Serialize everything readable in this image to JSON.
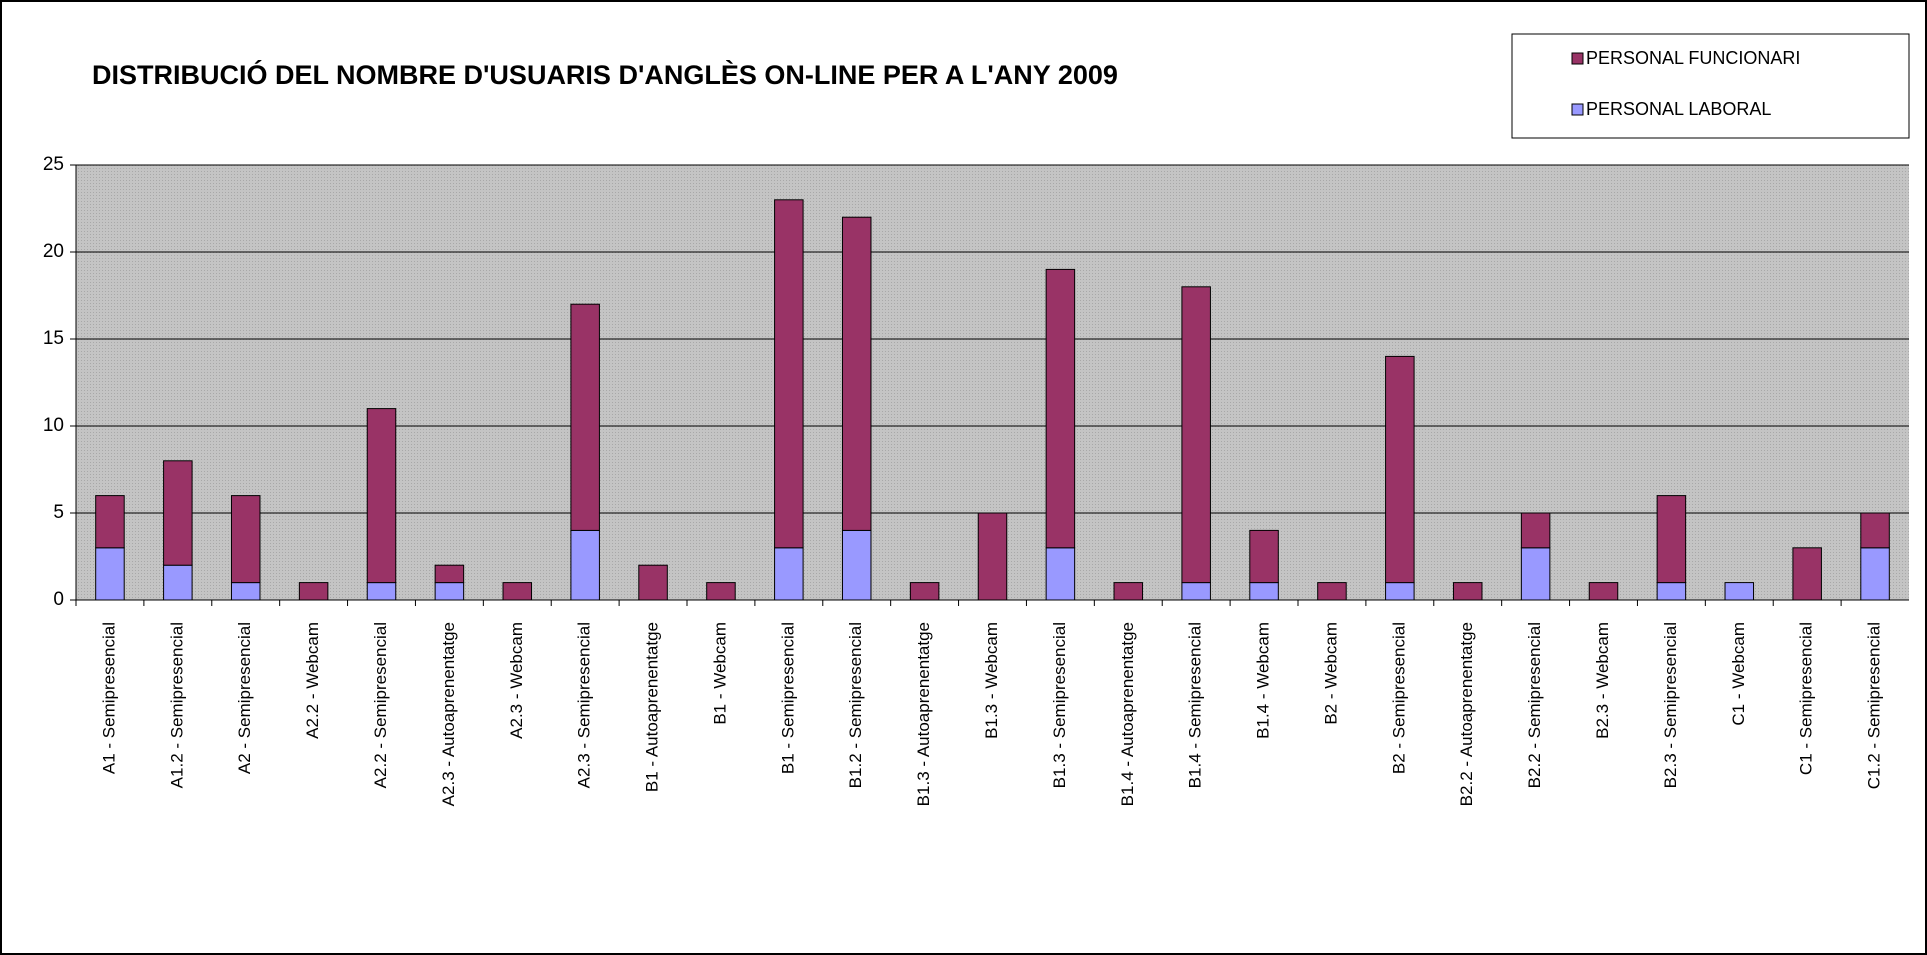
{
  "chart_data": {
    "type": "stacked_bar",
    "title": "DISTRIBUCIÓ DEL NOMBRE D'USUARIS D'ANGLÈS ON-LINE PER A L'ANY 2009",
    "categories": [
      "A1 - Semipresencial",
      "A1.2 - Semipresencial",
      "A2 - Semipresencial",
      "A2.2 - Webcam",
      "A2.2 - Semipresencial",
      "A2.3 - Autoaprenentatge",
      "A2.3 - Webcam",
      "A2.3 - Semipresencial",
      "B1 - Autoaprenentatge",
      "B1 - Webcam",
      "B1 - Semipresencial",
      "B1.2 - Semipresencial",
      "B1.3 - Autoaprenentatge",
      "B1.3 - Webcam",
      "B1.3 - Semipresencial",
      "B1.4 - Autoaprenentatge",
      "B1.4 - Semipresencial",
      "B1.4 - Webcam",
      "B2 - Webcam",
      "B2 - Semipresencial",
      "B2.2 - Autoaprenentatge",
      "B2.2 - Semipresencial",
      "B2.3 - Webcam",
      "B2.3 - Semipresencial",
      "C1 - Webcam",
      "C1 - Semipresencial",
      "C1.2 - Semipresencial"
    ],
    "series": [
      {
        "name": "PERSONAL FUNCIONARI",
        "color": "#993366",
        "values": [
          3,
          6,
          5,
          1,
          10,
          1,
          1,
          13,
          2,
          1,
          20,
          18,
          1,
          5,
          16,
          1,
          17,
          3,
          1,
          13,
          1,
          2,
          1,
          5,
          0,
          3,
          2
        ]
      },
      {
        "name": "PERSONAL LABORAL",
        "color": "#9999ff",
        "values": [
          3,
          2,
          1,
          0,
          1,
          1,
          0,
          4,
          0,
          0,
          3,
          4,
          0,
          0,
          3,
          0,
          1,
          1,
          0,
          1,
          0,
          3,
          0,
          1,
          1,
          0,
          3
        ]
      }
    ],
    "ylim": [
      0,
      25
    ],
    "yticks": [
      0,
      5,
      10,
      15,
      20,
      25
    ],
    "grid": true,
    "legend": "top-right"
  }
}
